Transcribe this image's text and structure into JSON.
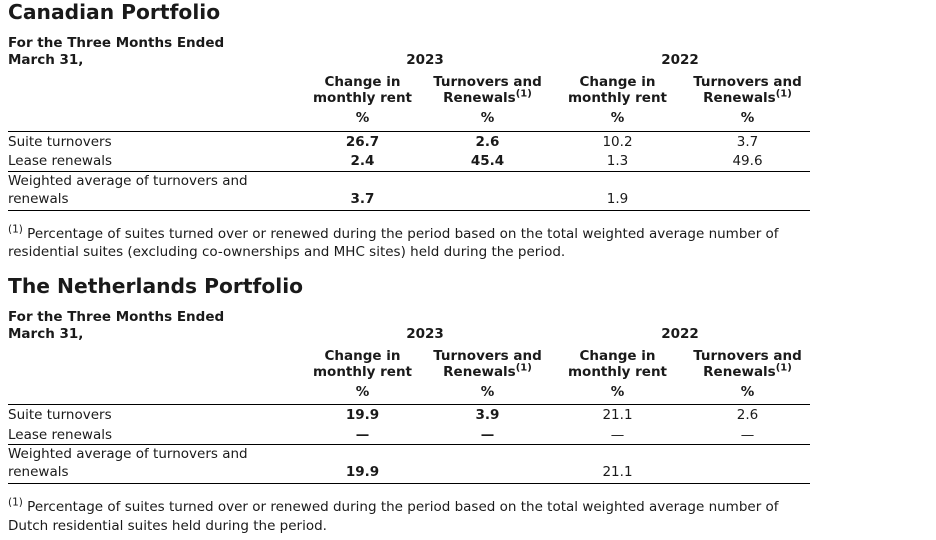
{
  "page": {
    "background": "#ffffff",
    "text_color": "#1a1a1a",
    "rule_color": "#000000"
  },
  "sections": [
    {
      "title": "Canadian Portfolio",
      "table": {
        "caption": "For the Three Months Ended March 31,",
        "year_groups": [
          {
            "label": "2023"
          },
          {
            "label": "2022"
          }
        ],
        "columns": [
          {
            "label": "Change in monthly rent",
            "footnote_marker": "",
            "unit": "%"
          },
          {
            "label": "Turnovers and Renewals",
            "footnote_marker": "(1)",
            "unit": "%"
          },
          {
            "label": "Change in monthly rent",
            "footnote_marker": "",
            "unit": "%"
          },
          {
            "label": "Turnovers and Renewals",
            "footnote_marker": "(1)",
            "unit": "%"
          }
        ],
        "rows": [
          {
            "label": "Suite turnovers",
            "values": [
              "26.7",
              "2.6",
              "10.2",
              "3.7"
            ]
          },
          {
            "label": "Lease renewals",
            "values": [
              "2.4",
              "45.4",
              "1.3",
              "49.6"
            ]
          },
          {
            "label": "Weighted average of turnovers and renewals",
            "values": [
              "3.7",
              "",
              "1.9",
              ""
            ]
          }
        ]
      },
      "footnote": {
        "marker": "(1)",
        "text": "Percentage of suites turned over or renewed during the period based on the total weighted average number of residential suites (excluding co-ownerships and MHC sites) held during the period."
      }
    },
    {
      "title": "The Netherlands Portfolio",
      "table": {
        "caption": "For the Three Months Ended March 31,",
        "year_groups": [
          {
            "label": "2023"
          },
          {
            "label": "2022"
          }
        ],
        "columns": [
          {
            "label": "Change in monthly rent",
            "footnote_marker": "",
            "unit": "%"
          },
          {
            "label": "Turnovers and Renewals",
            "footnote_marker": "(1)",
            "unit": "%"
          },
          {
            "label": "Change in monthly rent",
            "footnote_marker": "",
            "unit": "%"
          },
          {
            "label": "Turnovers and Renewals",
            "footnote_marker": "(1)",
            "unit": "%"
          }
        ],
        "rows": [
          {
            "label": "Suite turnovers",
            "values": [
              "19.9",
              "3.9",
              "21.1",
              "2.6"
            ]
          },
          {
            "label": "Lease renewals",
            "values": [
              "—",
              "—",
              "—",
              "—"
            ]
          },
          {
            "label": "Weighted average of turnovers and renewals",
            "values": [
              "19.9",
              "",
              "21.1",
              ""
            ]
          }
        ]
      },
      "footnote": {
        "marker": "(1)",
        "text": "Percentage of suites turned over or renewed during the period based on the total weighted average number of Dutch residential suites held during the period."
      }
    }
  ]
}
